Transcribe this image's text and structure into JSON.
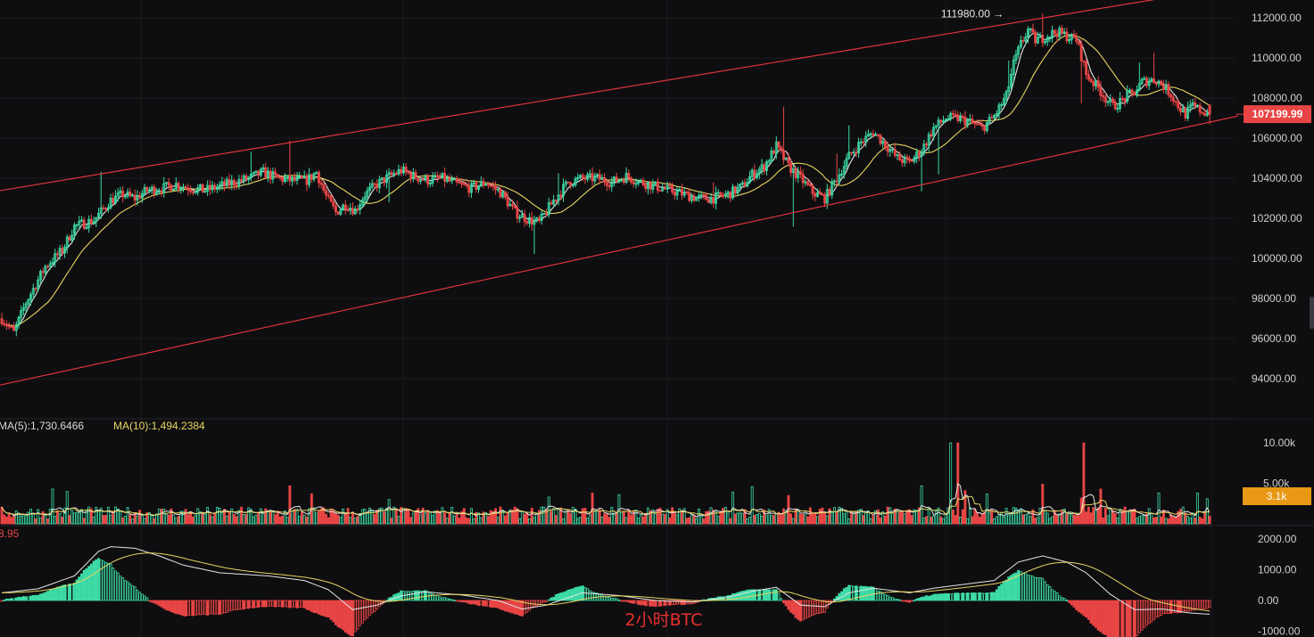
{
  "chart_data": {
    "type": "candlestick",
    "price_axis": {
      "ticks": [
        "112000.00",
        "110000.00",
        "108000.00",
        "106000.00",
        "104000.00",
        "102000.00",
        "100000.00",
        "98000.00",
        "96000.00",
        "94000.00"
      ],
      "ylim": [
        92000,
        112900
      ]
    },
    "current_price": {
      "label": "107199.99",
      "value": 107199.99,
      "color": "#e84545"
    },
    "high_marker": {
      "label": "111980.00 →",
      "value": 111980
    },
    "price_path": [
      [
        0,
        97000
      ],
      [
        5,
        96300
      ],
      [
        10,
        97800
      ],
      [
        18,
        99600
      ],
      [
        25,
        100400
      ],
      [
        30,
        101600
      ],
      [
        38,
        101900
      ],
      [
        45,
        102900
      ],
      [
        50,
        103200
      ],
      [
        55,
        103000
      ],
      [
        60,
        103400
      ],
      [
        66,
        103500
      ],
      [
        72,
        103700
      ],
      [
        78,
        103500
      ],
      [
        84,
        103400
      ],
      [
        90,
        103600
      ],
      [
        96,
        103800
      ],
      [
        102,
        104000
      ],
      [
        108,
        104300
      ],
      [
        114,
        104000
      ],
      [
        120,
        103900
      ],
      [
        126,
        103900
      ],
      [
        130,
        104300
      ],
      [
        134,
        103100
      ],
      [
        138,
        102300
      ],
      [
        142,
        102700
      ],
      [
        146,
        102400
      ],
      [
        150,
        103200
      ],
      [
        155,
        103700
      ],
      [
        160,
        104100
      ],
      [
        165,
        104400
      ],
      [
        170,
        104100
      ],
      [
        176,
        103900
      ],
      [
        182,
        104000
      ],
      [
        188,
        103700
      ],
      [
        194,
        103500
      ],
      [
        200,
        103800
      ],
      [
        206,
        103300
      ],
      [
        212,
        102300
      ],
      [
        218,
        101900
      ],
      [
        222,
        101800
      ],
      [
        228,
        102900
      ],
      [
        234,
        103800
      ],
      [
        240,
        104000
      ],
      [
        246,
        104000
      ],
      [
        252,
        103800
      ],
      [
        258,
        104100
      ],
      [
        264,
        103800
      ],
      [
        270,
        103600
      ],
      [
        276,
        103400
      ],
      [
        282,
        103200
      ],
      [
        288,
        103000
      ],
      [
        294,
        103000
      ],
      [
        300,
        103200
      ],
      [
        306,
        103600
      ],
      [
        310,
        104200
      ],
      [
        315,
        104600
      ],
      [
        320,
        105600
      ],
      [
        325,
        104600
      ],
      [
        330,
        104000
      ],
      [
        335,
        103300
      ],
      [
        340,
        103000
      ],
      [
        345,
        104000
      ],
      [
        350,
        105100
      ],
      [
        355,
        105800
      ],
      [
        360,
        106300
      ],
      [
        365,
        105700
      ],
      [
        370,
        105000
      ],
      [
        375,
        104800
      ],
      [
        380,
        105400
      ],
      [
        385,
        106500
      ],
      [
        390,
        107000
      ],
      [
        395,
        107000
      ],
      [
        400,
        106800
      ],
      [
        405,
        106500
      ],
      [
        410,
        107100
      ],
      [
        415,
        108100
      ],
      [
        418,
        109700
      ],
      [
        421,
        110700
      ],
      [
        424,
        111400
      ],
      [
        427,
        110900
      ],
      [
        430,
        111000
      ],
      [
        433,
        111200
      ],
      [
        436,
        111300
      ],
      [
        440,
        111100
      ],
      [
        444,
        110900
      ],
      [
        446,
        110100
      ],
      [
        448,
        109200
      ],
      [
        450,
        108900
      ],
      [
        453,
        108500
      ],
      [
        456,
        108000
      ],
      [
        459,
        107600
      ],
      [
        462,
        107800
      ],
      [
        465,
        108100
      ],
      [
        468,
        108300
      ],
      [
        471,
        108800
      ],
      [
        474,
        108900
      ],
      [
        477,
        108900
      ],
      [
        480,
        108600
      ],
      [
        483,
        108200
      ],
      [
        486,
        107600
      ],
      [
        489,
        107200
      ],
      [
        492,
        107600
      ],
      [
        495,
        107400
      ],
      [
        499,
        107200
      ]
    ],
    "spikes": [
      [
        380,
        -1600
      ],
      [
        387,
        -2200
      ],
      [
        327,
        -2600
      ],
      [
        220,
        -1400
      ],
      [
        230,
        1000
      ],
      [
        294,
        700
      ],
      [
        323,
        1900
      ],
      [
        416,
        1200
      ],
      [
        430,
        900
      ],
      [
        350,
        1100
      ],
      [
        446,
        -1800
      ],
      [
        41,
        1700
      ],
      [
        119,
        1500
      ],
      [
        160,
        -1300
      ],
      [
        470,
        800
      ],
      [
        476,
        1100
      ],
      [
        345,
        1300
      ],
      [
        103,
        1000
      ]
    ],
    "price_ma_series": [
      {
        "name": "MA-short",
        "color": "#e6e6e6",
        "period": 5
      },
      {
        "name": "MA-long",
        "color": "#e8d560",
        "period": 20
      }
    ],
    "channel_lines": {
      "color": "#e0343c",
      "upper": [
        [
          0,
          103400
        ],
        [
          475,
          112900
        ]
      ],
      "lower": [
        [
          0,
          93700
        ],
        [
          499,
          106800
        ]
      ]
    },
    "volume_legend": {
      "ma5": "MA(5):1,730.6466",
      "ma10": "MA(10):1,494.2384"
    },
    "volume_axis": {
      "ticks": [
        "10.00k",
        "5.00k"
      ],
      "current": "3.1k"
    },
    "volume_spikes": [
      [
        392,
        10000
      ],
      [
        395,
        10000
      ],
      [
        447,
        10000
      ],
      [
        21,
        4300
      ],
      [
        27,
        4000
      ],
      [
        119,
        4700
      ],
      [
        128,
        3700
      ],
      [
        160,
        3000
      ],
      [
        226,
        3300
      ],
      [
        244,
        3800
      ],
      [
        255,
        3600
      ],
      [
        302,
        3900
      ],
      [
        310,
        4600
      ],
      [
        325,
        3500
      ],
      [
        380,
        4700
      ],
      [
        398,
        4100
      ],
      [
        407,
        3700
      ],
      [
        430,
        4900
      ],
      [
        446,
        3200
      ],
      [
        454,
        4300
      ],
      [
        478,
        3800
      ],
      [
        494,
        3800
      ],
      [
        498,
        3100
      ]
    ],
    "macd_axis": {
      "ticks": [
        "2000.00",
        "1000.00",
        "0.00",
        "-1000.00"
      ]
    },
    "macd_path": [
      [
        0,
        250
      ],
      [
        15,
        380
      ],
      [
        30,
        800
      ],
      [
        40,
        1600
      ],
      [
        45,
        1750
      ],
      [
        55,
        1700
      ],
      [
        65,
        1450
      ],
      [
        75,
        1150
      ],
      [
        90,
        900
      ],
      [
        110,
        800
      ],
      [
        125,
        650
      ],
      [
        135,
        350
      ],
      [
        145,
        -300
      ],
      [
        155,
        -150
      ],
      [
        165,
        150
      ],
      [
        175,
        280
      ],
      [
        190,
        180
      ],
      [
        205,
        0
      ],
      [
        215,
        -280
      ],
      [
        225,
        -150
      ],
      [
        240,
        250
      ],
      [
        255,
        160
      ],
      [
        270,
        0
      ],
      [
        285,
        -50
      ],
      [
        300,
        100
      ],
      [
        310,
        300
      ],
      [
        320,
        430
      ],
      [
        330,
        -150
      ],
      [
        340,
        -200
      ],
      [
        350,
        250
      ],
      [
        360,
        400
      ],
      [
        375,
        250
      ],
      [
        385,
        400
      ],
      [
        400,
        550
      ],
      [
        410,
        650
      ],
      [
        420,
        1250
      ],
      [
        430,
        1450
      ],
      [
        440,
        1250
      ],
      [
        448,
        900
      ],
      [
        458,
        200
      ],
      [
        468,
        -300
      ],
      [
        480,
        -280
      ],
      [
        490,
        -400
      ],
      [
        499,
        -450
      ]
    ],
    "macd_legend_fragment": "8.95",
    "annotation": {
      "label": "2小时BTC",
      "color": "#e8302e"
    },
    "colors": {
      "up": "#3ddba7",
      "down": "#e84545",
      "macd_up": "#3ddba7",
      "macd_down": "#e84545",
      "volume_badge": "#e89814"
    },
    "bar_count": 500
  }
}
